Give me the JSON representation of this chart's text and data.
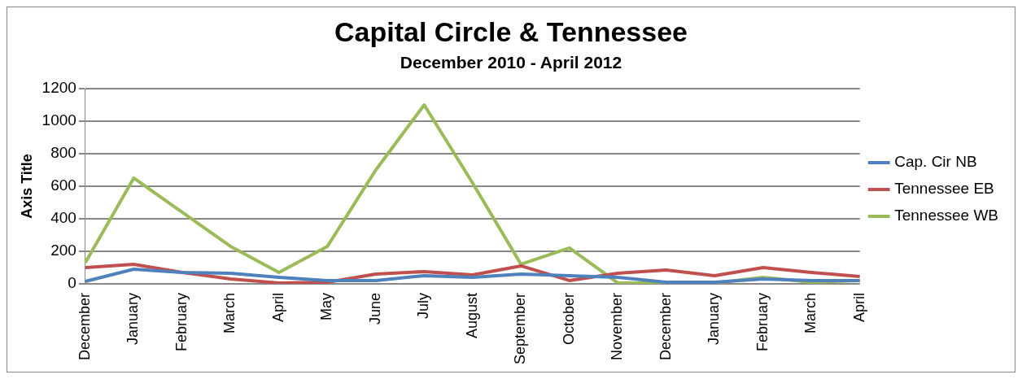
{
  "chart_data": {
    "type": "line",
    "title": "Capital Circle & Tennessee",
    "subtitle": "December 2010 - April 2012",
    "ylabel": "Axis Title",
    "categories": [
      "December",
      "January",
      "February",
      "March",
      "April",
      "May",
      "June",
      "July",
      "August",
      "September",
      "October",
      "November",
      "December",
      "January",
      "February",
      "March",
      "April"
    ],
    "series": [
      {
        "name": "Cap. Cir NB",
        "color": "#4f81bd",
        "values": [
          15,
          90,
          70,
          65,
          40,
          20,
          20,
          50,
          40,
          60,
          50,
          40,
          10,
          10,
          30,
          20,
          20
        ]
      },
      {
        "name": "Tennessee EB",
        "color": "#c0504d",
        "values": [
          100,
          120,
          70,
          30,
          5,
          10,
          60,
          75,
          55,
          110,
          20,
          65,
          85,
          50,
          100,
          70,
          45
        ]
      },
      {
        "name": "Tennessee WB",
        "color": "#9bbb59",
        "values": [
          130,
          650,
          440,
          230,
          70,
          230,
          700,
          1100,
          620,
          120,
          220,
          5,
          5,
          5,
          40,
          10,
          20
        ]
      }
    ],
    "ylim": [
      0,
      1200
    ],
    "yticks": [
      0,
      200,
      400,
      600,
      800,
      1000,
      1200
    ],
    "grid": "y",
    "legend": "right",
    "marker": "none"
  }
}
